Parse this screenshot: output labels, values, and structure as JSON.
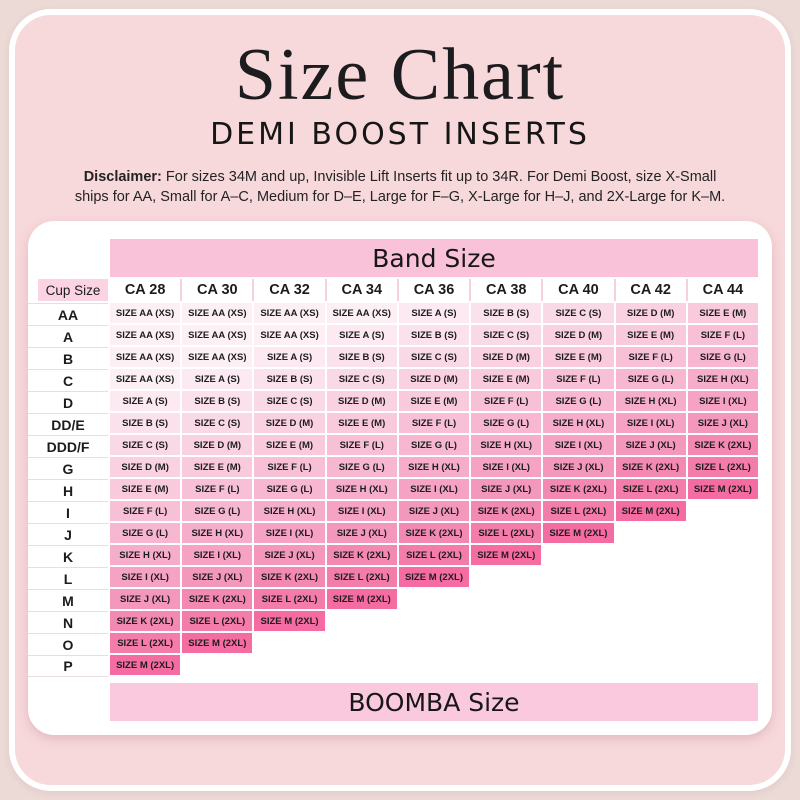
{
  "page": {
    "colors": {
      "page_background": "#ECDAD6",
      "frame_fill": "#F7D8DB",
      "frame_border": "#FFFFFF",
      "card_background": "#FFFFFF",
      "band_banner": "#F9C2D8",
      "boomba_banner": "#FBC9DD",
      "cup_header": "#FBD3E3",
      "header_separator": "#F8CFDF",
      "row_divider": "#ECDCDB",
      "text": "#1C1C1E"
    }
  },
  "header": {
    "title": "Size Chart",
    "subtitle": "DEMI BOOST INSERTS",
    "disclaimer_label": "Disclaimer:",
    "disclaimer_line1": "For sizes 34M and up, Invisible Lift Inserts fit up to 34R. For Demi Boost, size X-Small",
    "disclaimer_line2": "ships for AA, Small for A–C, Medium for D–E, Large for F–G, X-Large for H–J, and 2X-Large for K–M."
  },
  "chart_data": {
    "type": "table",
    "title": "Size Chart",
    "subtitle": "DEMI BOOST INSERTS",
    "column_axis_label": "Band Size",
    "row_axis_label": "Cup Size",
    "value_axis_label": "BOOMBA Size",
    "columns": [
      "CA 28",
      "CA 30",
      "CA 32",
      "CA 34",
      "CA 36",
      "CA 38",
      "CA 40",
      "CA 42",
      "CA 44"
    ],
    "size_labels": {
      "AA": "SIZE AA (XS)",
      "A": "SIZE A (S)",
      "B": "SIZE B (S)",
      "C": "SIZE C (S)",
      "D": "SIZE D (M)",
      "E": "SIZE E (M)",
      "F": "SIZE F (L)",
      "G": "SIZE G (L)",
      "H": "SIZE H (XL)",
      "I": "SIZE I (XL)",
      "J": "SIZE J (XL)",
      "K": "SIZE K (2XL)",
      "L": "SIZE L (2XL)",
      "M": "SIZE M (2XL)"
    },
    "size_colors": {
      "AA": "#FDF0F5",
      "A": "#FCE9F1",
      "B": "#FBE1EB",
      "C": "#FAD9E6",
      "D": "#FAD1E1",
      "E": "#F9C9DC",
      "F": "#F8C0D6",
      "G": "#F7B7D1",
      "H": "#F6ADCB",
      "I": "#F5A2C4",
      "J": "#F497BC",
      "K": "#F389B3",
      "L": "#F37CAA",
      "M": "#F56CA2"
    },
    "rows": [
      {
        "cup": "AA",
        "cells": [
          "AA",
          "AA",
          "AA",
          "AA",
          "A",
          "B",
          "C",
          "D",
          "E"
        ]
      },
      {
        "cup": "A",
        "cells": [
          "AA",
          "AA",
          "AA",
          "A",
          "B",
          "C",
          "D",
          "E",
          "F"
        ]
      },
      {
        "cup": "B",
        "cells": [
          "AA",
          "AA",
          "A",
          "B",
          "C",
          "D",
          "E",
          "F",
          "G"
        ]
      },
      {
        "cup": "C",
        "cells": [
          "AA",
          "A",
          "B",
          "C",
          "D",
          "E",
          "F",
          "G",
          "H"
        ]
      },
      {
        "cup": "D",
        "cells": [
          "A",
          "B",
          "C",
          "D",
          "E",
          "F",
          "G",
          "H",
          "I"
        ]
      },
      {
        "cup": "DD/E",
        "cells": [
          "B",
          "C",
          "D",
          "E",
          "F",
          "G",
          "H",
          "I",
          "J"
        ]
      },
      {
        "cup": "DDD/F",
        "cells": [
          "C",
          "D",
          "E",
          "F",
          "G",
          "H",
          "I",
          "J",
          "K"
        ]
      },
      {
        "cup": "G",
        "cells": [
          "D",
          "E",
          "F",
          "G",
          "H",
          "I",
          "J",
          "K",
          "L"
        ]
      },
      {
        "cup": "H",
        "cells": [
          "E",
          "F",
          "G",
          "H",
          "I",
          "J",
          "K",
          "L",
          "M"
        ]
      },
      {
        "cup": "I",
        "cells": [
          "F",
          "G",
          "H",
          "I",
          "J",
          "K",
          "L",
          "M"
        ]
      },
      {
        "cup": "J",
        "cells": [
          "G",
          "H",
          "I",
          "J",
          "K",
          "L",
          "M"
        ]
      },
      {
        "cup": "K",
        "cells": [
          "H",
          "I",
          "J",
          "K",
          "L",
          "M"
        ]
      },
      {
        "cup": "L",
        "cells": [
          "I",
          "J",
          "K",
          "L",
          "M"
        ]
      },
      {
        "cup": "M",
        "cells": [
          "J",
          "K",
          "L",
          "M"
        ]
      },
      {
        "cup": "N",
        "cells": [
          "K",
          "L",
          "M"
        ]
      },
      {
        "cup": "O",
        "cells": [
          "L",
          "M"
        ]
      },
      {
        "cup": "P",
        "cells": [
          "M"
        ]
      }
    ]
  }
}
